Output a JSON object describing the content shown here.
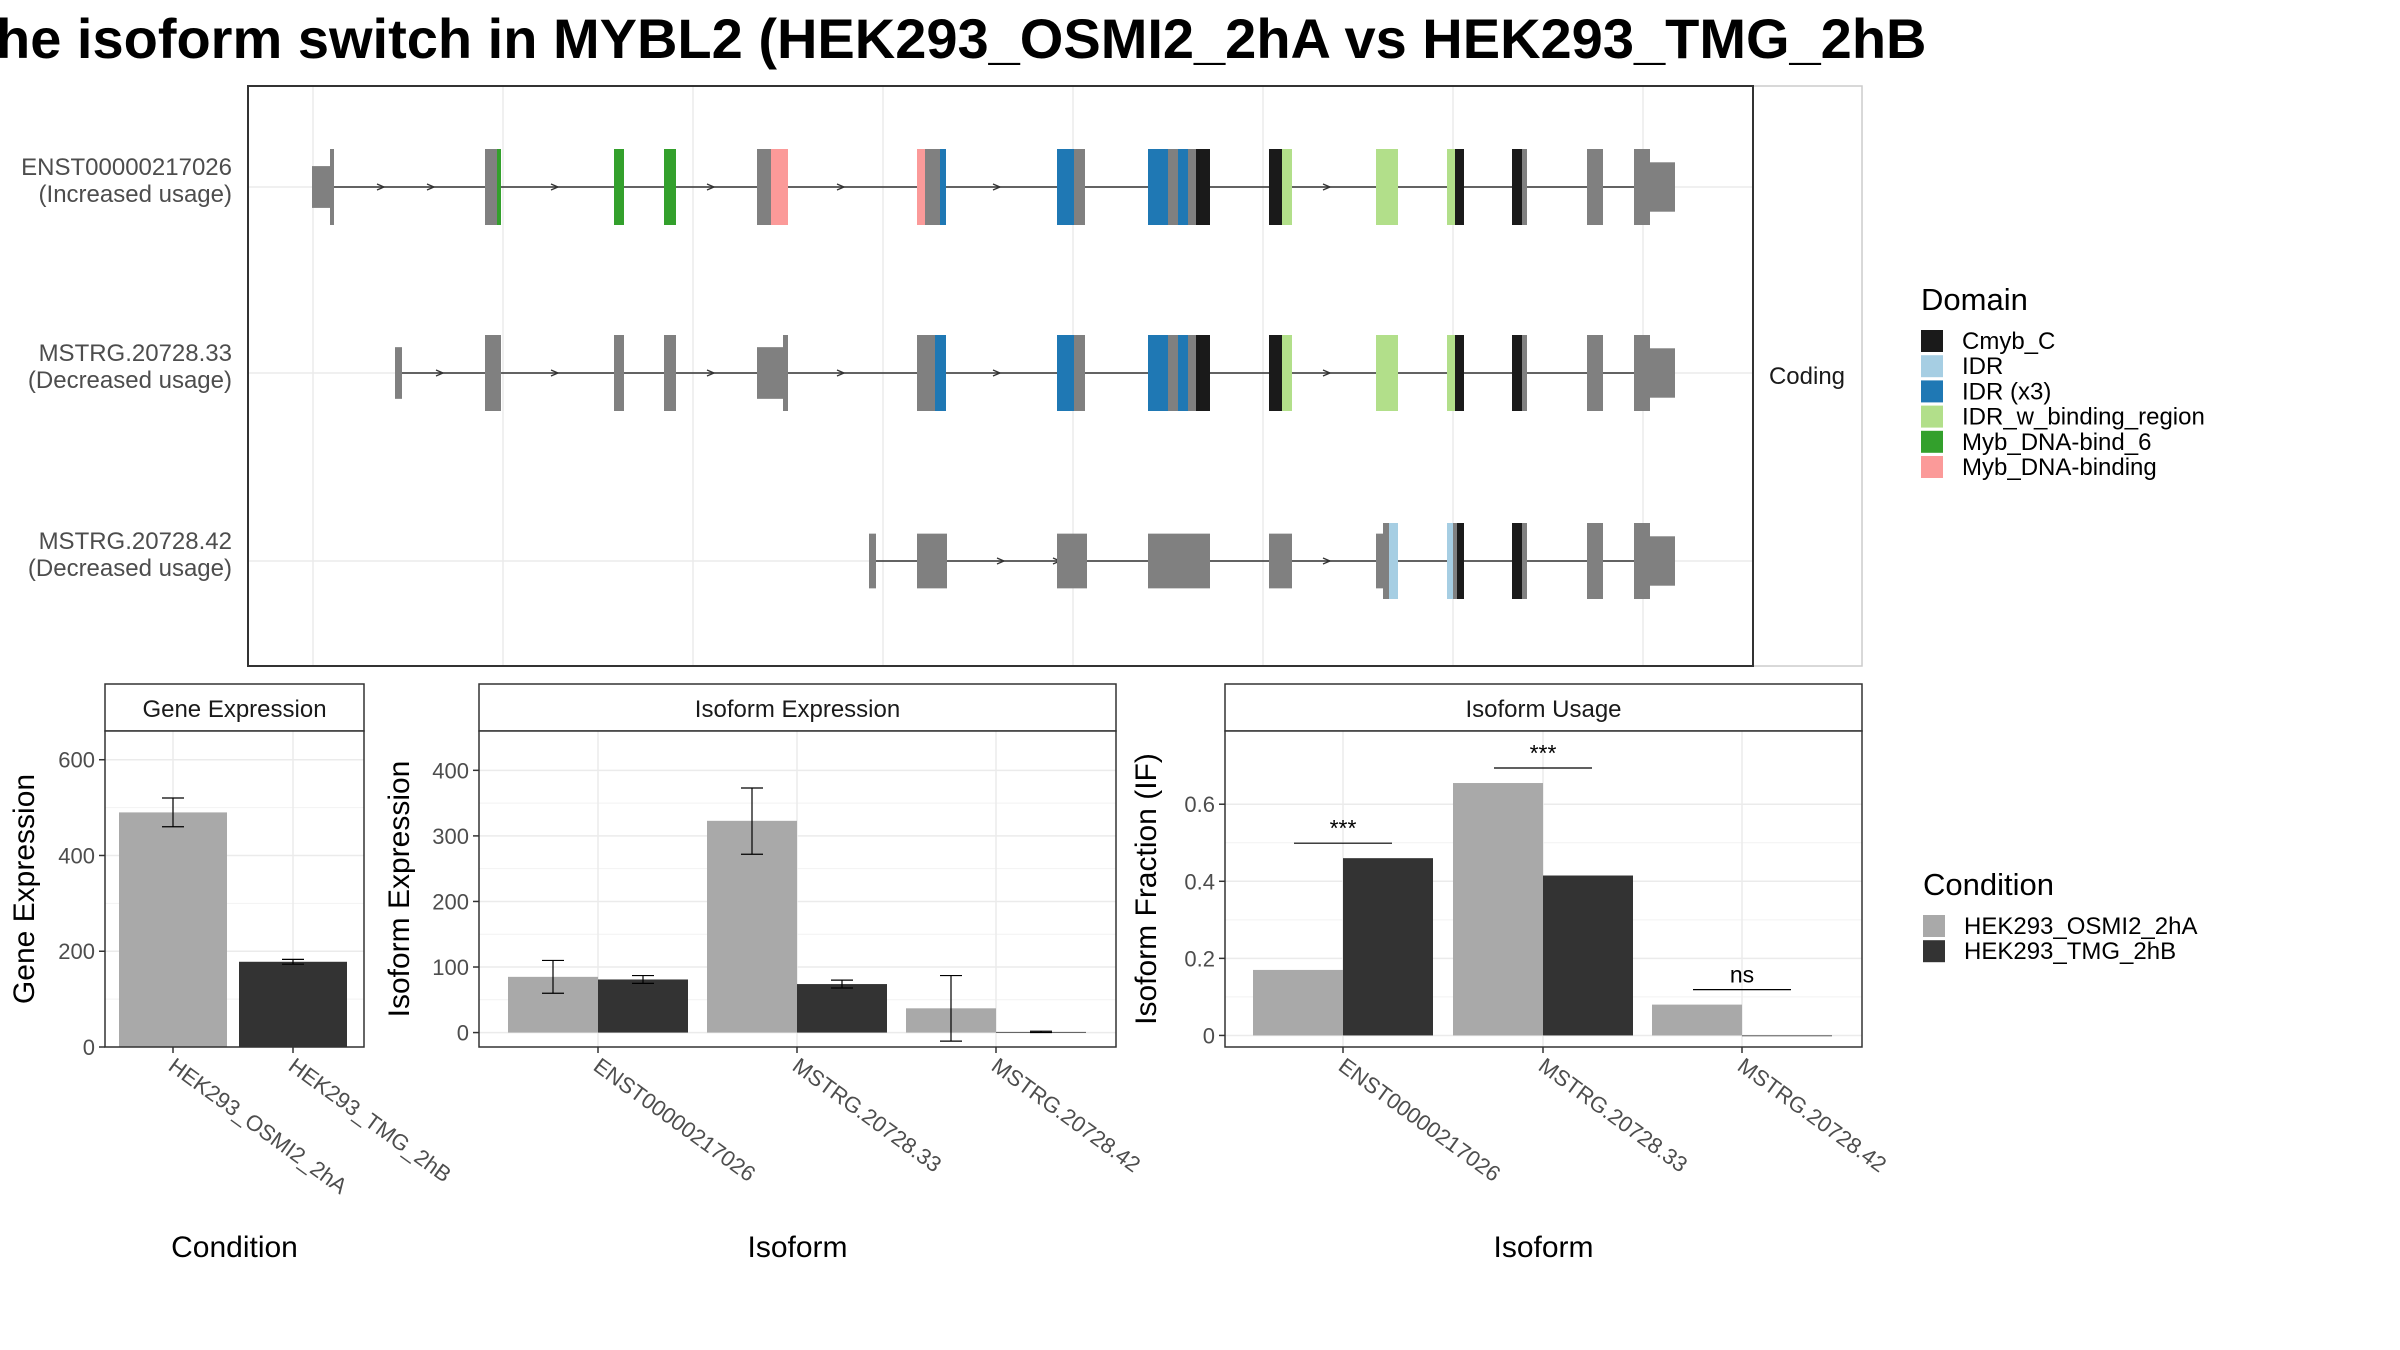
{
  "title": "he isoform switch in MYBL2 (HEK293_OSMI2_2hA vs HEK293_TMG_2hB",
  "colors": {
    "Cmyb_C": "#1a1a1a",
    "IDR": "#a6cee3",
    "IDR (x3)": "#1f78b4",
    "IDR_w_binding_region": "#b2df8a",
    "Myb_DNA-bind_6": "#33a02c",
    "Myb_DNA-binding": "#fb9a99",
    "exon": "#808080",
    "HEK293_OSMI2_2hA": "#a9a9a9",
    "HEK293_TMG_2hB": "#333333"
  },
  "structure": {
    "strip": "Coding",
    "isoforms": [
      {
        "id": "ENST00000217026",
        "usage": "(Increased usage)"
      },
      {
        "id": "MSTRG.20728.33",
        "usage": "(Decreased usage)"
      },
      {
        "id": "MSTRG.20728.42",
        "usage": "(Decreased usage)"
      }
    ]
  },
  "legend_domain": {
    "title": "Domain",
    "items": [
      "Cmyb_C",
      "IDR",
      "IDR (x3)",
      "IDR_w_binding_region",
      "Myb_DNA-bind_6",
      "Myb_DNA-binding"
    ]
  },
  "legend_condition": {
    "title": "Condition",
    "items": [
      "HEK293_OSMI2_2hA",
      "HEK293_TMG_2hB"
    ]
  },
  "chart_data": [
    {
      "type": "bar",
      "title": "Gene Expression",
      "xlabel": "Condition",
      "ylabel": "Gene Expression",
      "categories": [
        "HEK293_OSMI2_2hA",
        "HEK293_TMG_2hB"
      ],
      "values": [
        490,
        178
      ],
      "errors": [
        [
          460,
          520
        ],
        [
          173,
          183
        ]
      ],
      "ylim": [
        0,
        660
      ],
      "yticks": [
        0,
        200,
        400,
        600
      ]
    },
    {
      "type": "bar",
      "title": "Isoform Expression",
      "xlabel": "Isoform",
      "ylabel": "Isoform Expression",
      "categories": [
        "ENST00000217026",
        "MSTRG.20728.33",
        "MSTRG.20728.42"
      ],
      "series": [
        {
          "name": "HEK293_OSMI2_2hA",
          "values": [
            85,
            323,
            37
          ],
          "errors": [
            [
              60,
              110
            ],
            [
              272,
              373
            ],
            [
              -13,
              87
            ]
          ]
        },
        {
          "name": "HEK293_TMG_2hB",
          "values": [
            81,
            74,
            1
          ],
          "errors": [
            [
              75,
              87
            ],
            [
              68,
              80
            ],
            [
              0,
              2
            ]
          ]
        }
      ],
      "ylim": [
        -22,
        460
      ],
      "yticks": [
        0,
        100,
        200,
        300,
        400
      ]
    },
    {
      "type": "bar",
      "title": "Isoform Usage",
      "xlabel": "Isoform",
      "ylabel": "Isoform Fraction (IF)",
      "categories": [
        "ENST00000217026",
        "MSTRG.20728.33",
        "MSTRG.20728.42"
      ],
      "series": [
        {
          "name": "HEK293_OSMI2_2hA",
          "values": [
            0.17,
            0.655,
            0.08
          ]
        },
        {
          "name": "HEK293_TMG_2hB",
          "values": [
            0.46,
            0.415,
            0.0
          ]
        }
      ],
      "significance": [
        "***",
        "***",
        "ns"
      ],
      "ylim": [
        -0.03,
        0.79
      ],
      "yticks": [
        0.0,
        0.2,
        0.4,
        0.6
      ]
    }
  ]
}
